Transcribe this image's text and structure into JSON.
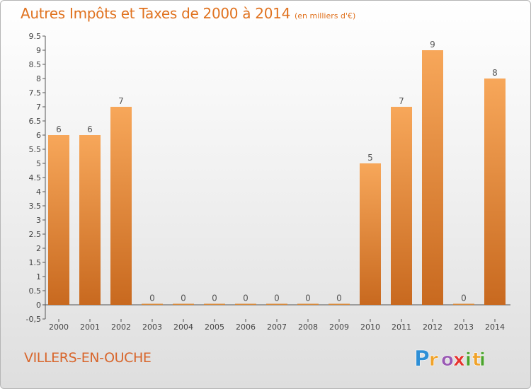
{
  "title": "Autres Impôts et Taxes de 2000 à 2014",
  "unit_note": "(en milliers d'€)",
  "commune": "VILLERS-EN-OUCHE",
  "logo_text": "Proxiti",
  "colors": {
    "accent": "#e0721f",
    "bar_top": "#f7a75a",
    "bar_bottom": "#c8691f",
    "axis": "#555555",
    "logo_p": "#2e8fd6",
    "logo_r": "#f0a32a",
    "logo_o": "#9a5ab4",
    "logo_x": "#e6322d",
    "logo_i": "#4aa32c",
    "logo_t": "#f0a32a"
  },
  "chart_data": {
    "type": "bar",
    "title": "Autres Impôts et Taxes de 2000 à 2014",
    "subtitle": "(en milliers d'€)",
    "categories": [
      "2000",
      "2001",
      "2002",
      "2003",
      "2004",
      "2005",
      "2006",
      "2007",
      "2008",
      "2009",
      "2010",
      "2011",
      "2012",
      "2013",
      "2014"
    ],
    "values": [
      6,
      6,
      7,
      0,
      0,
      0,
      0,
      0,
      0,
      0,
      5,
      7,
      9,
      0,
      8
    ],
    "value_labels": [
      "6",
      "6",
      "7",
      "0",
      "0",
      "0",
      "0",
      "0",
      "0",
      "0",
      "5",
      "7",
      "9",
      "0",
      "8"
    ],
    "ylim": [
      -0.5,
      9.5
    ],
    "yticks": [
      "-0,5",
      "0",
      "0.5",
      "1",
      "1.5",
      "2",
      "2.5",
      "3",
      "3.5",
      "4",
      "4.5",
      "5",
      "5.5",
      "6",
      "6.5",
      "7",
      "7.5",
      "8",
      "8.5",
      "9",
      "9.5"
    ],
    "ytick_values": [
      -0.5,
      0,
      0.5,
      1,
      1.5,
      2,
      2.5,
      3,
      3.5,
      4,
      4.5,
      5,
      5.5,
      6,
      6.5,
      7,
      7.5,
      8,
      8.5,
      9,
      9.5
    ],
    "grid": false
  }
}
